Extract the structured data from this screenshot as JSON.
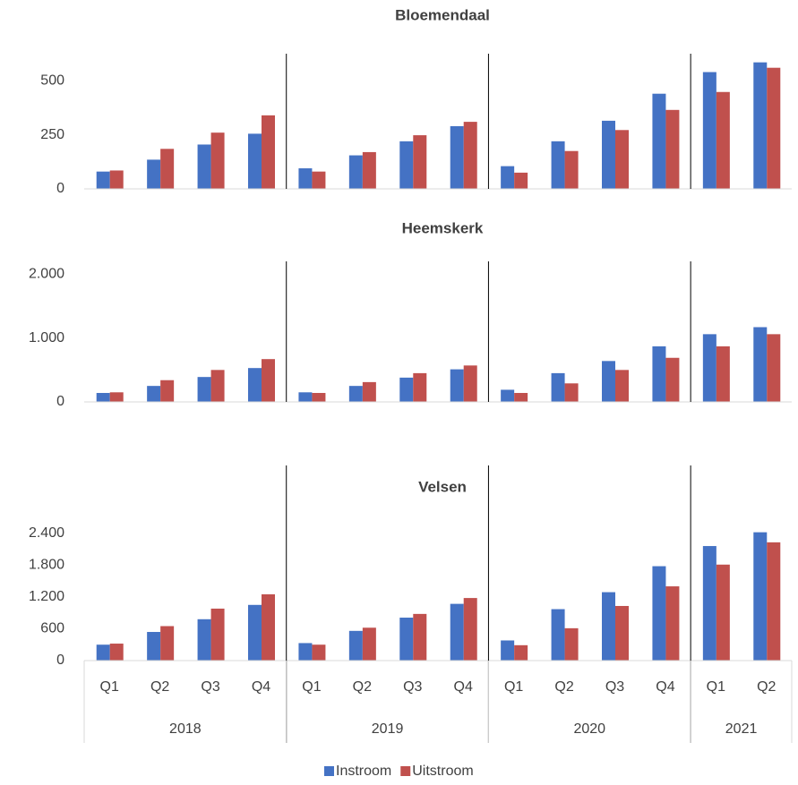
{
  "chart_data": [
    {
      "type": "bar",
      "title": "Bloemendaal",
      "ylim": [
        0,
        625
      ],
      "yticks": [
        0,
        250,
        500
      ],
      "series": [
        {
          "color": "#4472c4",
          "values": [
            80,
            135,
            205,
            255,
            95,
            155,
            220,
            290,
            105,
            220,
            315,
            440,
            540,
            585
          ]
        },
        {
          "color": "#c0504d",
          "values": [
            85,
            185,
            260,
            340,
            80,
            170,
            248,
            310,
            75,
            175,
            272,
            365,
            448,
            560
          ]
        }
      ]
    },
    {
      "type": "bar",
      "title": "Heemskerk",
      "ylim": [
        0,
        2200
      ],
      "yticks": [
        0,
        {
          "value": 1000,
          "label": "1.000"
        },
        {
          "value": 2000,
          "label": "2.000"
        }
      ],
      "series": [
        {
          "color": "#4472c4",
          "values": [
            140,
            250,
            390,
            530,
            150,
            250,
            380,
            510,
            190,
            450,
            640,
            870,
            1060,
            1170
          ]
        },
        {
          "color": "#c0504d",
          "values": [
            150,
            340,
            500,
            670,
            140,
            310,
            450,
            570,
            140,
            290,
            500,
            690,
            870,
            1060
          ]
        }
      ]
    },
    {
      "type": "bar",
      "title": "Velsen",
      "ylim": [
        0,
        3680
      ],
      "yticks": [
        0,
        600,
        {
          "value": 1200,
          "label": "1.200"
        },
        {
          "value": 1800,
          "label": "1.800"
        },
        {
          "value": 2400,
          "label": "2.400"
        }
      ],
      "categories": [
        "Q1",
        "Q2",
        "Q3",
        "Q4",
        "Q1",
        "Q2",
        "Q3",
        "Q4",
        "Q1",
        "Q2",
        "Q3",
        "Q4",
        "Q1",
        "Q2"
      ],
      "groups": [
        {
          "label": "2018",
          "size": 4
        },
        {
          "label": "2019",
          "size": 4
        },
        {
          "label": "2020",
          "size": 4
        },
        {
          "label": "2021",
          "size": 2
        }
      ],
      "series": [
        {
          "name": "Instroom",
          "color": "#4472c4",
          "values": [
            300,
            540,
            780,
            1050,
            330,
            560,
            810,
            1070,
            380,
            970,
            1290,
            1780,
            2160,
            2420
          ]
        },
        {
          "name": "Uitstroom",
          "color": "#c0504d",
          "values": [
            320,
            650,
            980,
            1250,
            300,
            620,
            880,
            1180,
            290,
            610,
            1030,
            1400,
            1810,
            2230
          ]
        }
      ]
    }
  ]
}
